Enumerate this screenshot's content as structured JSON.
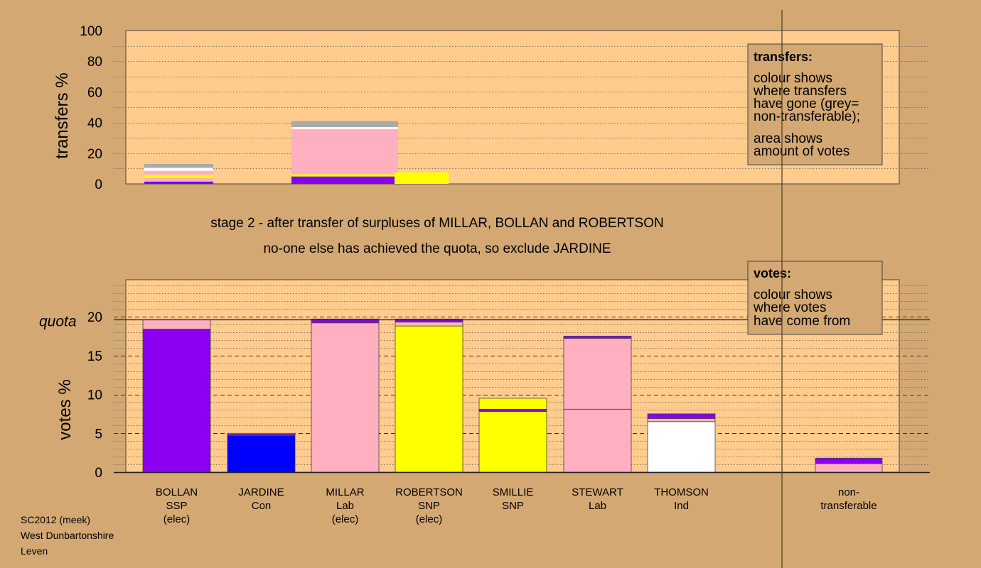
{
  "colors": {
    "background": "#d4a873",
    "plot_bg": "#ffcc8e",
    "SSP": "#8b00f0",
    "Con": "#0000ff",
    "Lab": "#ffb0c0",
    "SNP": "#ffff00",
    "Ind": "#ffffff",
    "nontransferable": "#aaaaaa",
    "outline": "#444444"
  },
  "stage_text": {
    "line1": "stage 2 - after transfer of surpluses of MILLAR, BOLLAN and ROBERTSON",
    "line2": "no-one else has achieved the quota, so exclude JARDINE"
  },
  "footer": {
    "line1": "SC2012 (meek)",
    "line2": "West Dunbartonshire",
    "line3": "Leven"
  },
  "chart_data": [
    {
      "type": "bar",
      "ylabel": "transfers %",
      "ylim": [
        0,
        100
      ],
      "yticks": [
        "0",
        "20",
        "40",
        "60",
        "80",
        "100"
      ],
      "legend": {
        "title": "transfers:",
        "lines1": [
          "colour shows",
          "where transfers",
          "have gone (grey=",
          "non-transferable);"
        ],
        "lines2": [
          "area shows",
          "amount of votes"
        ]
      },
      "bars": [
        {
          "column": "BOLLAN",
          "width": 1,
          "segments": [
            {
              "party": "SSP",
              "value": 1.2
            },
            {
              "party": "Con",
              "value": 0.3
            },
            {
              "party": "Lab",
              "value": 2.5
            },
            {
              "party": "SNP",
              "value": 2.0
            },
            {
              "party": "Lab",
              "value": 2.5
            },
            {
              "party": "Ind",
              "value": 2.0
            },
            {
              "party": "nontransferable",
              "value": 2.5
            }
          ]
        },
        {
          "column": "MILLAR",
          "width": 1,
          "segments": [
            {
              "party": "SSP",
              "value": 4.5
            },
            {
              "party": "Con",
              "value": 0.3
            },
            {
              "party": "SNP",
              "value": 1.5
            },
            {
              "party": "Lab",
              "value": 29.5
            },
            {
              "party": "Ind",
              "value": 1.2
            },
            {
              "party": "nontransferable",
              "value": 4.0
            }
          ]
        },
        {
          "column": "ROBERTSON",
          "width": 0.8,
          "segments": [
            {
              "party": "SNP",
              "value": 7.5
            }
          ]
        }
      ]
    },
    {
      "type": "bar",
      "ylabel": "votes %",
      "ylim": [
        0,
        25
      ],
      "yticks": [
        "0",
        "5",
        "10",
        "15",
        "20"
      ],
      "quota": 19.6,
      "quota_label": "quota",
      "legend": {
        "title": "votes:",
        "lines1": [
          "colour shows",
          "where votes",
          "have come from"
        ]
      },
      "candidates": [
        {
          "name": "BOLLAN",
          "party": "SSP",
          "elected": "(elec)",
          "segments": [
            {
              "party": "SSP",
              "value": 18.4
            },
            {
              "party": "Lab",
              "value": 1.2
            }
          ]
        },
        {
          "name": "JARDINE",
          "party": "Con",
          "elected": "",
          "segments": [
            {
              "party": "Con",
              "value": 4.7
            },
            {
              "party": "SSP",
              "value": 0.2
            },
            {
              "party": "Lab",
              "value": 0.1
            }
          ]
        },
        {
          "name": "MILLAR",
          "party": "Lab",
          "elected": "(elec)",
          "segments": [
            {
              "party": "Lab",
              "value": 19.2
            },
            {
              "party": "SSP",
              "value": 0.5
            }
          ]
        },
        {
          "name": "ROBERTSON",
          "party": "SNP",
          "elected": "(elec)",
          "segments": [
            {
              "party": "SNP",
              "value": 18.8
            },
            {
              "party": "Lab",
              "value": 0.5
            },
            {
              "party": "SSP",
              "value": 0.4
            }
          ]
        },
        {
          "name": "SMILLIE",
          "party": "SNP",
          "elected": "",
          "segments": [
            {
              "party": "SNP",
              "value": 7.8
            },
            {
              "party": "SSP",
              "value": 0.3
            },
            {
              "party": "SNP",
              "value": 1.4
            }
          ]
        },
        {
          "name": "STEWART",
          "party": "Lab",
          "elected": "",
          "segments": [
            {
              "party": "Lab",
              "value": 8.1
            },
            {
              "party": "Lab",
              "value": 9.1
            },
            {
              "party": "SSP",
              "value": 0.3
            }
          ]
        },
        {
          "name": "THOMSON",
          "party": "Ind",
          "elected": "",
          "segments": [
            {
              "party": "Ind",
              "value": 6.5
            },
            {
              "party": "Lab",
              "value": 0.4
            },
            {
              "party": "SSP",
              "value": 0.6
            }
          ]
        }
      ],
      "nontransferable": {
        "label1": "non-",
        "label2": "transferable",
        "segments": [
          {
            "party": "Lab",
            "value": 1.1
          },
          {
            "party": "SSP",
            "value": 0.7
          }
        ]
      }
    }
  ]
}
